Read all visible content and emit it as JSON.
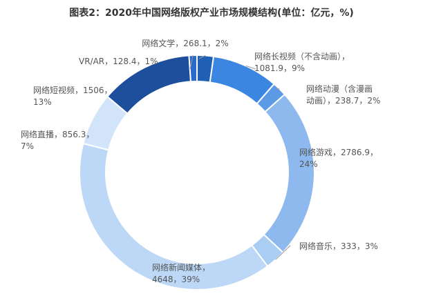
{
  "title": "图表2：2020年中国网络版权产业市场规模结构(单位：亿元，%)",
  "chart_data": {
    "type": "pie",
    "donut": true,
    "unit": "亿元",
    "slices": [
      {
        "name": "网络文学",
        "value": 268.1,
        "percent": "2%",
        "color": "#1f5fb4",
        "label": [
          "网络文学，268.1，2%"
        ]
      },
      {
        "name": "网络长视频（不含动画）",
        "value": 1081.9,
        "percent": "9%",
        "color": "#3b86e0",
        "label": [
          "网络长视频（不含动画），",
          "1081.9，9%"
        ]
      },
      {
        "name": "网络动漫（含漫画动画）",
        "value": 238.7,
        "percent": "2%",
        "color": "#5d9ae6",
        "label": [
          "网络动漫（含漫画",
          "动画），238.7，2%"
        ]
      },
      {
        "name": "网络游戏",
        "value": 2786.9,
        "percent": "24%",
        "color": "#8db9ee",
        "label": [
          "网络游戏，2786.9，",
          "24%"
        ]
      },
      {
        "name": "网络音乐",
        "value": 333,
        "percent": "3%",
        "color": "#a9cdf3",
        "label": [
          "网络音乐，333，3%"
        ]
      },
      {
        "name": "网络新闻媒体",
        "value": 4648,
        "percent": "39%",
        "color": "#bcd8f6",
        "label": [
          "网络新闻媒体，",
          "4648，39%"
        ]
      },
      {
        "name": "网络直播",
        "value": 856.3,
        "percent": "7%",
        "color": "#d2e4fa",
        "label": [
          "网络直播，856.3，",
          "7%"
        ]
      },
      {
        "name": "网络短视频",
        "value": 1506,
        "percent": "13%",
        "color": "#1d4f9c",
        "label": [
          "网络短视频，1506，",
          "13%"
        ]
      },
      {
        "name": "VR/AR",
        "value": 128.4,
        "percent": "1%",
        "color": "#2a6acb",
        "label": [
          "VR/AR，128.4，1%"
        ]
      }
    ]
  }
}
